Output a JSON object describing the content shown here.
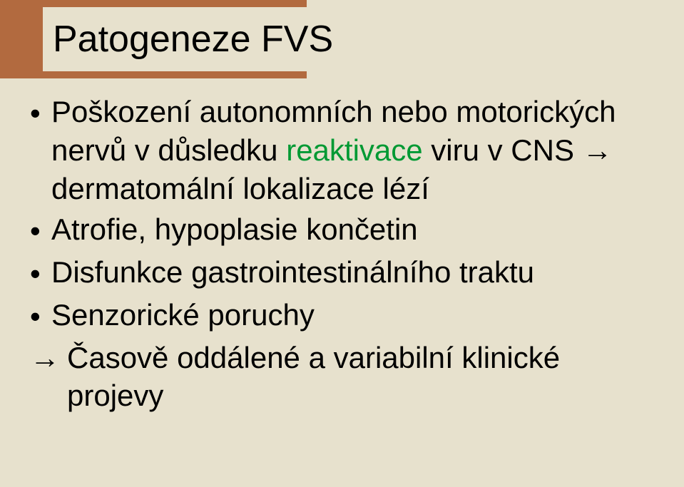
{
  "slide": {
    "title": "Patogeneze FVS",
    "title_font_size": 52,
    "body_font_size": 42,
    "bg_color": "#e7e1cd",
    "title_block_color": "#b26a3f",
    "text_color": "#000000",
    "green_color": "#009933",
    "bullets": [
      {
        "pre": "Poškození  autonomních nebo motorických nervů v důsledku ",
        "green": "reaktivace",
        "post": " viru v CNS → dermatomální lokalizace lézí"
      },
      {
        "text": "Atrofie, hypoplasie končetin"
      },
      {
        "text": "Disfunkce gastrointestinálního traktu"
      },
      {
        "text": "Senzorické poruchy"
      }
    ],
    "conclusion": "Časově oddálené  a variabilní klinické projevy",
    "bullet_symbol": "•",
    "arrow_symbol": "→"
  }
}
